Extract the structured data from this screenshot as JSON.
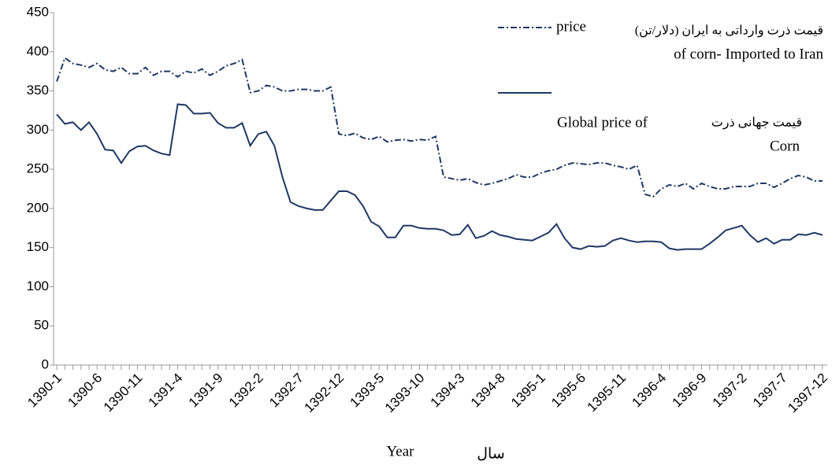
{
  "chart_data": {
    "type": "line",
    "categories": [
      "1390-1",
      null,
      null,
      null,
      null,
      "1390-6",
      null,
      null,
      null,
      null,
      "1390-11",
      null,
      null,
      null,
      null,
      "1391-4",
      null,
      null,
      null,
      null,
      "1391-9",
      null,
      null,
      null,
      null,
      "1392-2",
      null,
      null,
      null,
      null,
      "1392-7",
      null,
      null,
      null,
      null,
      "1392-12",
      null,
      null,
      null,
      null,
      "1393-5",
      null,
      null,
      null,
      null,
      "1393-10",
      null,
      null,
      null,
      null,
      "1394-3",
      null,
      null,
      null,
      null,
      "1394-8",
      null,
      null,
      null,
      null,
      "1395-1",
      null,
      null,
      null,
      null,
      "1395-6",
      null,
      null,
      null,
      null,
      "1395-11",
      null,
      null,
      null,
      null,
      "1396-4",
      null,
      null,
      null,
      null,
      "1396-9",
      null,
      null,
      null,
      null,
      "1397-2",
      null,
      null,
      null,
      null,
      "1397-7",
      null,
      null,
      null,
      null,
      "1397-12"
    ],
    "series": [
      {
        "name": "price",
        "color": "#1f3864",
        "dash": true,
        "values": [
          362,
          392,
          385,
          383,
          380,
          385,
          377,
          375,
          380,
          372,
          372,
          380,
          370,
          375,
          375,
          368,
          375,
          373,
          378,
          370,
          375,
          382,
          385,
          390,
          348,
          350,
          357,
          355,
          350,
          350,
          352,
          352,
          350,
          350,
          355,
          295,
          293,
          296,
          290,
          288,
          292,
          285,
          287,
          288,
          286,
          288,
          287,
          292,
          240,
          238,
          236,
          238,
          233,
          230,
          232,
          235,
          238,
          243,
          240,
          240,
          245,
          248,
          250,
          255,
          258,
          257,
          256,
          258,
          258,
          255,
          253,
          250,
          255,
          218,
          215,
          225,
          230,
          228,
          232,
          225,
          232,
          228,
          225,
          225,
          228,
          228,
          228,
          232,
          232,
          227,
          232,
          238,
          242,
          240,
          235,
          235
        ]
      },
      {
        "name": "Global price of",
        "color": "#1f3864",
        "dash": false,
        "values": [
          320,
          308,
          310,
          300,
          310,
          295,
          275,
          274,
          258,
          273,
          279,
          280,
          274,
          270,
          268,
          333,
          332,
          321,
          321,
          322,
          309,
          303,
          303,
          309,
          280,
          295,
          298,
          280,
          240,
          208,
          203,
          200,
          198,
          198,
          210,
          222,
          222,
          217,
          203,
          183,
          177,
          163,
          163,
          178,
          178,
          175,
          174,
          174,
          172,
          166,
          167,
          179,
          162,
          165,
          171,
          166,
          164,
          161,
          160,
          159,
          164,
          169,
          180,
          162,
          150,
          148,
          152,
          151,
          152,
          159,
          162,
          159,
          157,
          158,
          158,
          157,
          149,
          147,
          148,
          148,
          148,
          155,
          163,
          172,
          175,
          178,
          166,
          157,
          162,
          155,
          160,
          160,
          167,
          166,
          169,
          166
        ]
      }
    ],
    "annotations": [
      "قیمت ذرت وارداتی به ایران (دلار/تن)",
      "of corn- Imported to Iran",
      "قیمت  جهانی ذرت",
      "Corn",
      "سال"
    ],
    "x_label": "Year",
    "ylim": [
      0,
      450
    ],
    "yticks": [
      0,
      50,
      100,
      150,
      200,
      250,
      300,
      350,
      400,
      450
    ]
  }
}
